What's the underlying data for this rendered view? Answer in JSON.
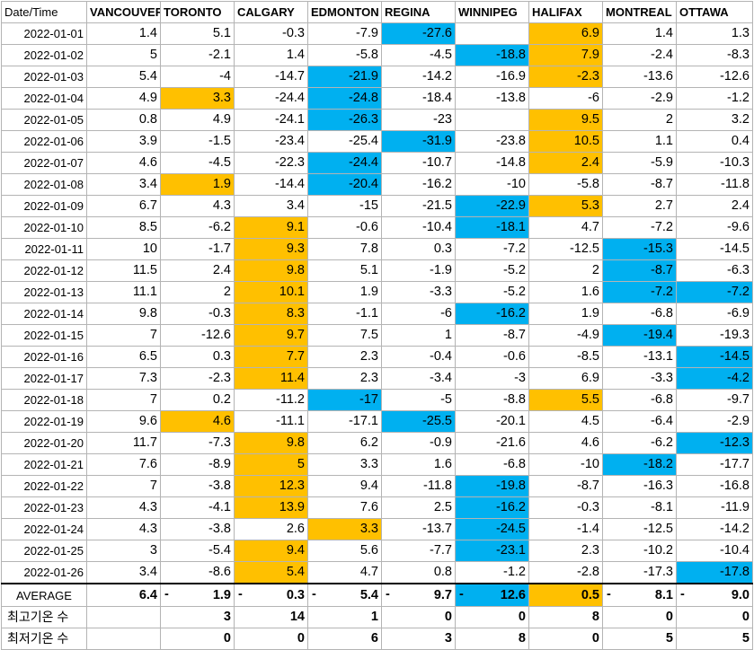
{
  "headers": [
    "Date/Time",
    "VANCOUVER",
    "TORONTO",
    "CALGARY",
    "EDMONTON",
    "REGINA",
    "WINNIPEG",
    "HALIFAX",
    "MONTREAL",
    "OTTAWA"
  ],
  "rows": [
    {
      "date": "2022-01-01",
      "v": [
        "1.4",
        "5.1",
        "-0.3",
        "-7.9",
        "-27.6",
        "",
        "6.9",
        "1.4",
        "1.3"
      ],
      "h": [
        "",
        "",
        "",
        "",
        "lo",
        "",
        "hi",
        "",
        ""
      ]
    },
    {
      "date": "2022-01-02",
      "v": [
        "5",
        "-2.1",
        "1.4",
        "-5.8",
        "-4.5",
        "-18.8",
        "7.9",
        "-2.4",
        "-8.3"
      ],
      "h": [
        "",
        "",
        "",
        "",
        "",
        "lo",
        "hi",
        "",
        ""
      ]
    },
    {
      "date": "2022-01-03",
      "v": [
        "5.4",
        "-4",
        "-14.7",
        "-21.9",
        "-14.2",
        "-16.9",
        "-2.3",
        "-13.6",
        "-12.6"
      ],
      "h": [
        "",
        "",
        "",
        "lo",
        "",
        "",
        "hi",
        "",
        ""
      ]
    },
    {
      "date": "2022-01-04",
      "v": [
        "4.9",
        "3.3",
        "-24.4",
        "-24.8",
        "-18.4",
        "-13.8",
        "-6",
        "-2.9",
        "-1.2"
      ],
      "h": [
        "",
        "hi",
        "",
        "lo",
        "",
        "",
        "",
        "",
        ""
      ]
    },
    {
      "date": "2022-01-05",
      "v": [
        "0.8",
        "4.9",
        "-24.1",
        "-26.3",
        "-23",
        "",
        "9.5",
        "2",
        "3.2"
      ],
      "h": [
        "",
        "",
        "",
        "lo",
        "",
        "",
        "hi",
        "",
        ""
      ]
    },
    {
      "date": "2022-01-06",
      "v": [
        "3.9",
        "-1.5",
        "-23.4",
        "-25.4",
        "-31.9",
        "-23.8",
        "10.5",
        "1.1",
        "0.4"
      ],
      "h": [
        "",
        "",
        "",
        "",
        "lo",
        "",
        "hi",
        "",
        ""
      ]
    },
    {
      "date": "2022-01-07",
      "v": [
        "4.6",
        "-4.5",
        "-22.3",
        "-24.4",
        "-10.7",
        "-14.8",
        "2.4",
        "-5.9",
        "-10.3"
      ],
      "h": [
        "",
        "",
        "",
        "lo",
        "",
        "",
        "hi",
        "",
        ""
      ]
    },
    {
      "date": "2022-01-08",
      "v": [
        "3.4",
        "1.9",
        "-14.4",
        "-20.4",
        "-16.2",
        "-10",
        "-5.8",
        "-8.7",
        "-11.8"
      ],
      "h": [
        "",
        "hi",
        "",
        "lo",
        "",
        "",
        "",
        "",
        ""
      ]
    },
    {
      "date": "2022-01-09",
      "v": [
        "6.7",
        "4.3",
        "3.4",
        "-15",
        "-21.5",
        "-22.9",
        "5.3",
        "2.7",
        "2.4"
      ],
      "h": [
        "",
        "",
        "",
        "",
        "",
        "lo",
        "hi",
        "",
        ""
      ]
    },
    {
      "date": "2022-01-10",
      "v": [
        "8.5",
        "-6.2",
        "9.1",
        "-0.6",
        "-10.4",
        "-18.1",
        "4.7",
        "-7.2",
        "-9.6"
      ],
      "h": [
        "",
        "",
        "hi",
        "",
        "",
        "lo",
        "",
        "",
        ""
      ]
    },
    {
      "date": "2022-01-11",
      "v": [
        "10",
        "-1.7",
        "9.3",
        "7.8",
        "0.3",
        "-7.2",
        "-12.5",
        "-15.3",
        "-14.5"
      ],
      "h": [
        "",
        "",
        "hi",
        "",
        "",
        "",
        "",
        "lo",
        ""
      ]
    },
    {
      "date": "2022-01-12",
      "v": [
        "11.5",
        "2.4",
        "9.8",
        "5.1",
        "-1.9",
        "-5.2",
        "2",
        "-8.7",
        "-6.3"
      ],
      "h": [
        "",
        "",
        "hi",
        "",
        "",
        "",
        "",
        "lo",
        ""
      ]
    },
    {
      "date": "2022-01-13",
      "v": [
        "11.1",
        "2",
        "10.1",
        "1.9",
        "-3.3",
        "-5.2",
        "1.6",
        "-7.2",
        "-7.2"
      ],
      "h": [
        "",
        "",
        "hi",
        "",
        "",
        "",
        "",
        "lo",
        "lo"
      ]
    },
    {
      "date": "2022-01-14",
      "v": [
        "9.8",
        "-0.3",
        "8.3",
        "-1.1",
        "-6",
        "-16.2",
        "1.9",
        "-6.8",
        "-6.9"
      ],
      "h": [
        "",
        "",
        "hi",
        "",
        "",
        "lo",
        "",
        "",
        ""
      ]
    },
    {
      "date": "2022-01-15",
      "v": [
        "7",
        "-12.6",
        "9.7",
        "7.5",
        "1",
        "-8.7",
        "-4.9",
        "-19.4",
        "-19.3"
      ],
      "h": [
        "",
        "",
        "hi",
        "",
        "",
        "",
        "",
        "lo",
        ""
      ]
    },
    {
      "date": "2022-01-16",
      "v": [
        "6.5",
        "0.3",
        "7.7",
        "2.3",
        "-0.4",
        "-0.6",
        "-8.5",
        "-13.1",
        "-14.5"
      ],
      "h": [
        "",
        "",
        "hi",
        "",
        "",
        "",
        "",
        "",
        "lo"
      ]
    },
    {
      "date": "2022-01-17",
      "v": [
        "7.3",
        "-2.3",
        "11.4",
        "2.3",
        "-3.4",
        "-3",
        "6.9",
        "-3.3",
        "-4.2"
      ],
      "h": [
        "",
        "",
        "hi",
        "",
        "",
        "",
        "",
        "",
        "lo"
      ]
    },
    {
      "date": "2022-01-18",
      "v": [
        "7",
        "0.2",
        "-11.2",
        "-17",
        "-5",
        "-8.8",
        "5.5",
        "-6.8",
        "-9.7"
      ],
      "h": [
        "",
        "",
        "",
        "lo",
        "",
        "",
        "hi",
        "",
        ""
      ]
    },
    {
      "date": "2022-01-19",
      "v": [
        "9.6",
        "4.6",
        "-11.1",
        "-17.1",
        "-25.5",
        "-20.1",
        "4.5",
        "-6.4",
        "-2.9"
      ],
      "h": [
        "",
        "hi",
        "",
        "",
        "lo",
        "",
        "",
        "",
        ""
      ]
    },
    {
      "date": "2022-01-20",
      "v": [
        "11.7",
        "-7.3",
        "9.8",
        "6.2",
        "-0.9",
        "-21.6",
        "4.6",
        "-6.2",
        "-12.3"
      ],
      "h": [
        "",
        "",
        "hi",
        "",
        "",
        "",
        "",
        "",
        "lo"
      ]
    },
    {
      "date": "2022-01-21",
      "v": [
        "7.6",
        "-8.9",
        "5",
        "3.3",
        "1.6",
        "-6.8",
        "-10",
        "-18.2",
        "-17.7"
      ],
      "h": [
        "",
        "",
        "hi",
        "",
        "",
        "",
        "",
        "lo",
        ""
      ]
    },
    {
      "date": "2022-01-22",
      "v": [
        "7",
        "-3.8",
        "12.3",
        "9.4",
        "-11.8",
        "-19.8",
        "-8.7",
        "-16.3",
        "-16.8"
      ],
      "h": [
        "",
        "",
        "hi",
        "",
        "",
        "lo",
        "",
        "",
        ""
      ]
    },
    {
      "date": "2022-01-23",
      "v": [
        "4.3",
        "-4.1",
        "13.9",
        "7.6",
        "2.5",
        "-16.2",
        "-0.3",
        "-8.1",
        "-11.9"
      ],
      "h": [
        "",
        "",
        "hi",
        "",
        "",
        "lo",
        "",
        "",
        ""
      ]
    },
    {
      "date": "2022-01-24",
      "v": [
        "4.3",
        "-3.8",
        "2.6",
        "3.3",
        "-13.7",
        "-24.5",
        "-1.4",
        "-12.5",
        "-14.2"
      ],
      "h": [
        "",
        "",
        "",
        "hi",
        "",
        "lo",
        "",
        "",
        ""
      ]
    },
    {
      "date": "2022-01-25",
      "v": [
        "3",
        "-5.4",
        "9.4",
        "5.6",
        "-7.7",
        "-23.1",
        "2.3",
        "-10.2",
        "-10.4"
      ],
      "h": [
        "",
        "",
        "hi",
        "",
        "",
        "lo",
        "",
        "",
        ""
      ]
    },
    {
      "date": "2022-01-26",
      "v": [
        "3.4",
        "-8.6",
        "5.4",
        "4.7",
        "0.8",
        "-1.2",
        "-2.8",
        "-17.3",
        "-17.8"
      ],
      "h": [
        "",
        "",
        "hi",
        "",
        "",
        "",
        "",
        "",
        "lo"
      ]
    }
  ],
  "average": {
    "label": "AVERAGE",
    "sign": [
      "",
      "-",
      "-",
      "-",
      "-",
      "-",
      "",
      "-",
      "-"
    ],
    "v": [
      "6.4",
      "1.9",
      "0.3",
      "5.4",
      "9.7",
      "12.6",
      "0.5",
      "8.1",
      "9.0"
    ],
    "h": [
      "",
      "",
      "",
      "",
      "",
      "lo",
      "hi",
      "",
      ""
    ]
  },
  "max_count": {
    "label": "최고기온 수",
    "v": [
      "",
      "3",
      "14",
      "1",
      "0",
      "0",
      "8",
      "0",
      "0"
    ]
  },
  "min_count": {
    "label": "최저기온 수",
    "v": [
      "",
      "0",
      "0",
      "6",
      "3",
      "8",
      "0",
      "5",
      "5"
    ]
  }
}
